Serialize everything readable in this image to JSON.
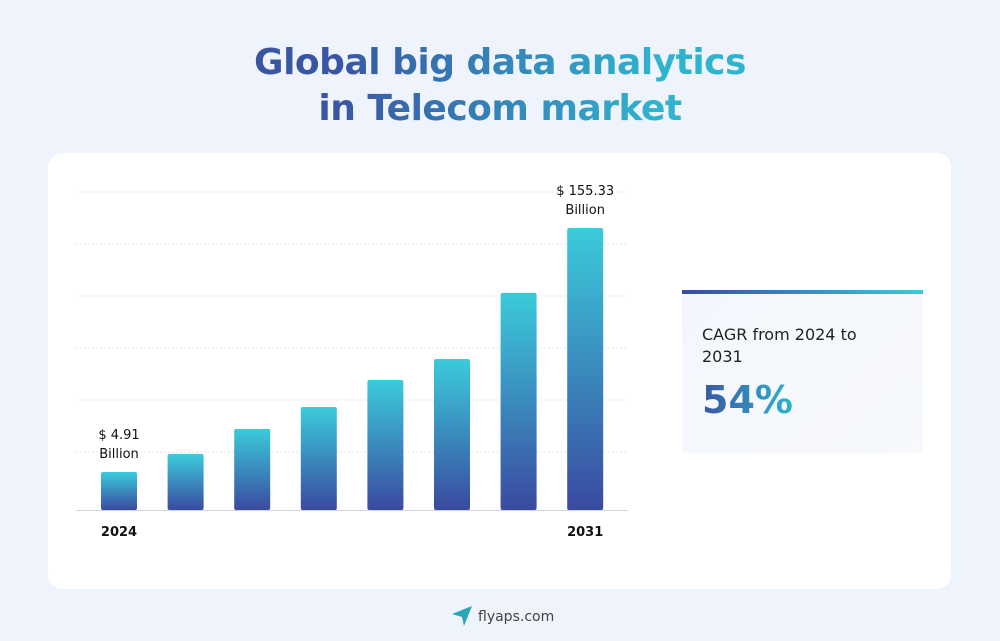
{
  "chart_data": {
    "type": "bar",
    "title": "Global big data analytics in Telecom market",
    "categories": [
      "2024",
      null,
      null,
      null,
      null,
      null,
      null,
      "2031"
    ],
    "values": [
      4.91,
      16.0,
      31.4,
      45.0,
      61.6,
      74.6,
      115.3,
      155.33
    ],
    "value_labels": [
      "$ 4.91 Billion",
      null,
      null,
      null,
      null,
      null,
      null,
      "$ 155.33 Billion"
    ],
    "color": [
      "#3bcbdb",
      "#3a4aa0"
    ],
    "ylim": [
      -18.5,
      177.5
    ],
    "annotation": {
      "text": "CAGR from 2024 to 2031",
      "value": "54%"
    }
  },
  "footer": "flyaps.com"
}
